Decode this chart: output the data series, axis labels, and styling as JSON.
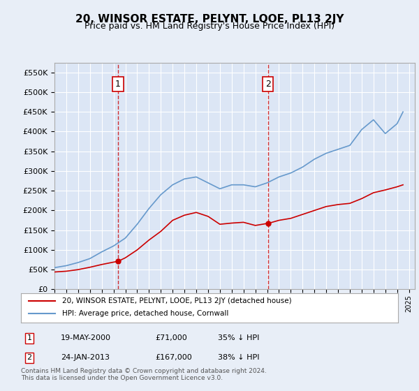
{
  "title": "20, WINSOR ESTATE, PELYNT, LOOE, PL13 2JY",
  "subtitle": "Price paid vs. HM Land Registry's House Price Index (HPI)",
  "background_color": "#e8eef7",
  "plot_bg_color": "#dce6f5",
  "sale1_date_x": 2000.38,
  "sale1_price": 71000,
  "sale1_label": "1",
  "sale2_date_x": 2013.07,
  "sale2_price": 167000,
  "sale2_label": "2",
  "legend_line1": "20, WINSOR ESTATE, PELYNT, LOOE, PL13 2JY (detached house)",
  "legend_line2": "HPI: Average price, detached house, Cornwall",
  "annotation1": "1    19-MAY-2000        £71,000        35% ↓ HPI",
  "annotation2": "2    24-JAN-2013        £167,000      38% ↓ HPI",
  "footnote": "Contains HM Land Registry data © Crown copyright and database right 2024.\nThis data is licensed under the Open Government Licence v3.0.",
  "ylim": [
    0,
    575000
  ],
  "xlim_start": 1995,
  "xlim_end": 2025.5,
  "hpi_color": "#6699cc",
  "price_color": "#cc0000",
  "vline_color": "#cc0000"
}
